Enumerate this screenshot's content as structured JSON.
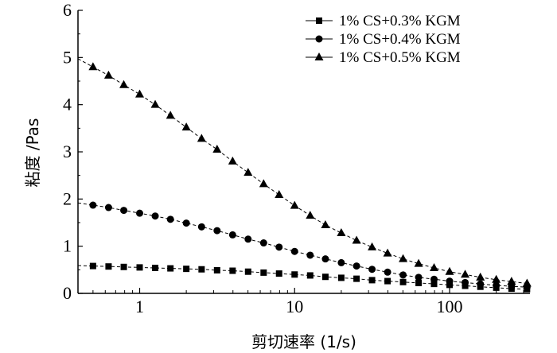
{
  "chart_data": {
    "type": "line",
    "xlabel": "剪切速率 (1/s)",
    "ylabel": "粘度 /Pas",
    "x_scale": "log",
    "xlim": [
      0.4,
      330
    ],
    "ylim": [
      0,
      6
    ],
    "x_ticks": [
      1,
      10,
      100
    ],
    "x_tick_labels": [
      "1",
      "10",
      "100"
    ],
    "y_ticks": [
      0,
      1,
      2,
      3,
      4,
      5,
      6
    ],
    "y_tick_labels": [
      "0",
      "1",
      "2",
      "3",
      "4",
      "5",
      "6"
    ],
    "grid": false,
    "legend_position": "top-right",
    "x": [
      0.5,
      0.63,
      0.79,
      1.0,
      1.26,
      1.58,
      2.0,
      2.51,
      3.16,
      3.98,
      5.01,
      6.31,
      7.94,
      10.0,
      12.6,
      15.8,
      20.0,
      25.1,
      31.6,
      39.8,
      50.1,
      63.1,
      79.4,
      100,
      126,
      158,
      200,
      251,
      316
    ],
    "series": [
      {
        "name": "1% CS+0.3% KGM",
        "marker": "square",
        "values": [
          0.58,
          0.57,
          0.56,
          0.55,
          0.54,
          0.53,
          0.52,
          0.51,
          0.49,
          0.48,
          0.46,
          0.44,
          0.42,
          0.4,
          0.38,
          0.35,
          0.33,
          0.31,
          0.28,
          0.26,
          0.24,
          0.22,
          0.2,
          0.18,
          0.16,
          0.14,
          0.12,
          0.1,
          0.09
        ]
      },
      {
        "name": "1% CS+0.4% KGM",
        "marker": "circle",
        "values": [
          1.87,
          1.82,
          1.76,
          1.7,
          1.64,
          1.57,
          1.49,
          1.41,
          1.33,
          1.24,
          1.15,
          1.07,
          0.98,
          0.89,
          0.81,
          0.73,
          0.65,
          0.58,
          0.51,
          0.45,
          0.39,
          0.34,
          0.3,
          0.26,
          0.23,
          0.2,
          0.17,
          0.15,
          0.13
        ]
      },
      {
        "name": "1% CS+0.5% KGM",
        "marker": "triangle",
        "values": [
          4.8,
          4.62,
          4.42,
          4.22,
          4.0,
          3.77,
          3.52,
          3.28,
          3.05,
          2.8,
          2.56,
          2.32,
          2.09,
          1.86,
          1.65,
          1.45,
          1.28,
          1.12,
          0.98,
          0.85,
          0.73,
          0.63,
          0.54,
          0.46,
          0.4,
          0.34,
          0.29,
          0.25,
          0.21
        ]
      }
    ]
  }
}
